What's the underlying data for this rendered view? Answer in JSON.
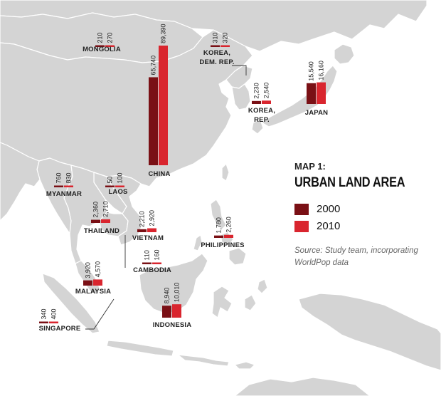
{
  "colors": {
    "land": "#d4d4d4",
    "border": "#ffffff",
    "sea": "#ffffff",
    "y2000": "#7a1015",
    "y2010": "#d9252e",
    "text": "#222222"
  },
  "map_title": {
    "number": "MAP 1:",
    "title": "URBAN LAND AREA"
  },
  "legend": [
    {
      "label": "2000",
      "color": "#7a1015"
    },
    {
      "label": "2010",
      "color": "#d9252e"
    }
  ],
  "source": "Source: Study team, incorporating WorldPop data",
  "countries": [
    {
      "id": "mongolia",
      "name": "MONGOLIA",
      "v2000": "210",
      "v2010": "270",
      "a2000": 210,
      "a2010": 270
    },
    {
      "id": "china",
      "name": "CHINA",
      "v2000": "65,740",
      "v2010": "89,390",
      "a2000": 65740,
      "a2010": 89390
    },
    {
      "id": "korea-dpr",
      "name": "KOREA, DEM. REP.",
      "line1": "KOREA,",
      "line2": "DEM. REP.",
      "v2000": "310",
      "v2010": "320",
      "a2000": 310,
      "a2010": 320
    },
    {
      "id": "korea-rep",
      "name": "KOREA, REP.",
      "line1": "KOREA,",
      "line2": "REP.",
      "v2000": "2,230",
      "v2010": "2,540",
      "a2000": 2230,
      "a2010": 2540
    },
    {
      "id": "japan",
      "name": "JAPAN",
      "v2000": "15,540",
      "v2010": "16,160",
      "a2000": 15540,
      "a2010": 16160
    },
    {
      "id": "myanmar",
      "name": "MYANMAR",
      "v2000": "760",
      "v2010": "830",
      "a2000": 760,
      "a2010": 830
    },
    {
      "id": "laos",
      "name": "LAOS",
      "v2000": "50",
      "v2010": "100",
      "a2000": 50,
      "a2010": 100
    },
    {
      "id": "thailand",
      "name": "THAILAND",
      "v2000": "2,360",
      "v2010": "2,710",
      "a2000": 2360,
      "a2010": 2710
    },
    {
      "id": "vietnam",
      "name": "VIETNAM",
      "v2000": "2,210",
      "v2010": "2,920",
      "a2000": 2210,
      "a2010": 2920
    },
    {
      "id": "cambodia",
      "name": "CAMBODIA",
      "v2000": "110",
      "v2010": "160",
      "a2000": 110,
      "a2010": 160
    },
    {
      "id": "philippines",
      "name": "PHILIPPINES",
      "v2000": "1,780",
      "v2010": "2,260",
      "a2000": 1780,
      "a2010": 2260
    },
    {
      "id": "malaysia",
      "name": "MALAYSIA",
      "v2000": "3,920",
      "v2010": "4,570",
      "a2000": 3920,
      "a2010": 4570
    },
    {
      "id": "singapore",
      "name": "SINGAPORE",
      "v2000": "340",
      "v2010": "400",
      "a2000": 340,
      "a2010": 400
    },
    {
      "id": "indonesia",
      "name": "INDONESIA",
      "v2000": "8,940",
      "v2010": "10,010",
      "a2000": 8940,
      "a2010": 10010
    }
  ]
}
